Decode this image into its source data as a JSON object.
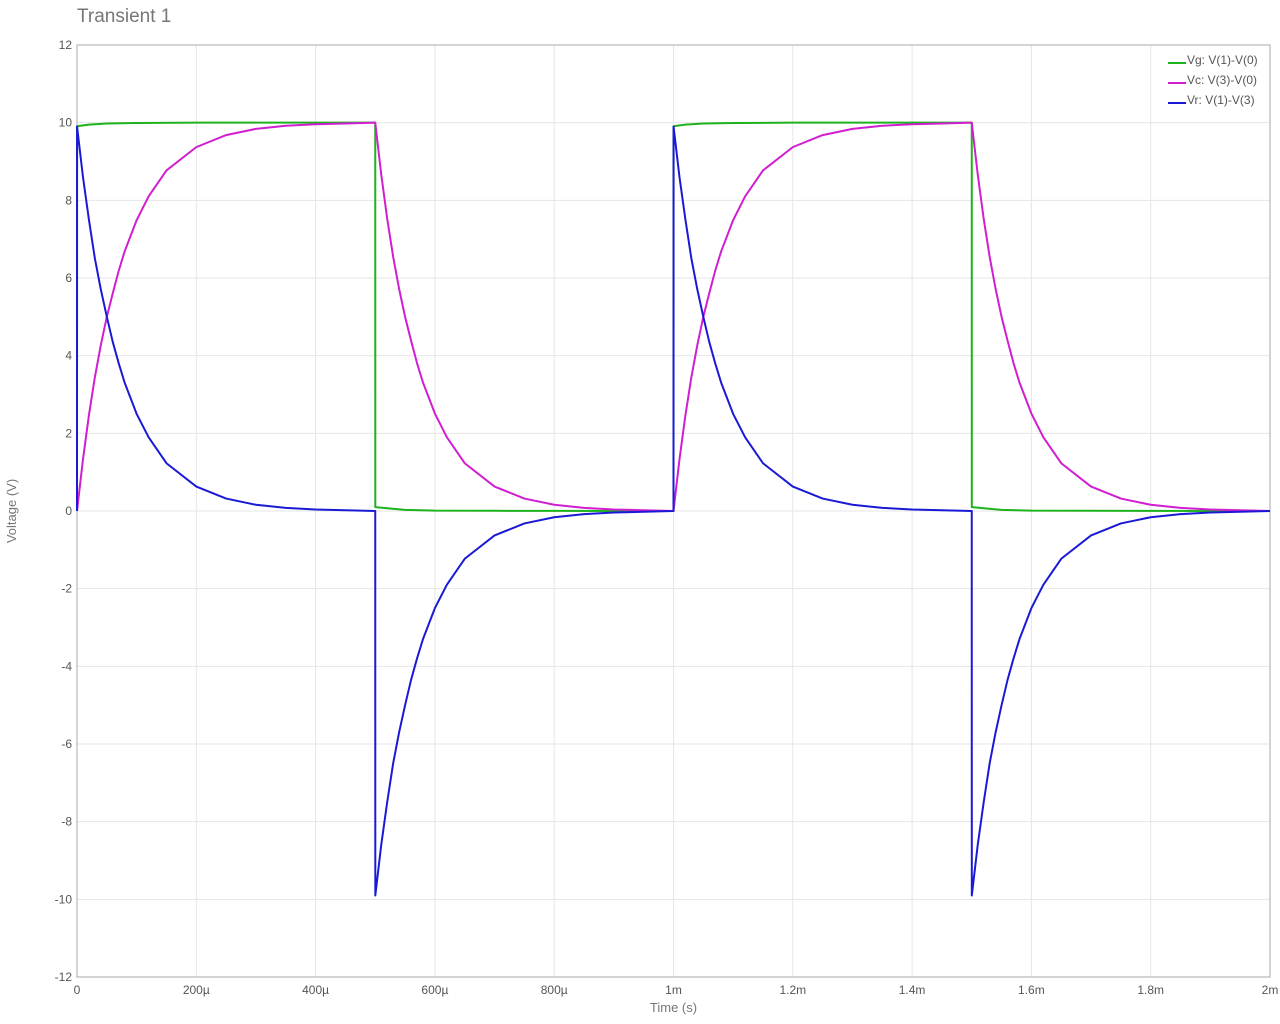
{
  "chart_data": {
    "type": "line",
    "title": "Transient 1",
    "xlabel": "Time (s)",
    "ylabel": "Voltage (V)",
    "xlim": [
      0,
      0.002
    ],
    "ylim": [
      -12,
      12
    ],
    "grid": true,
    "legend_position": "top-right",
    "x_ticks": [
      {
        "value": 0,
        "label": "0"
      },
      {
        "value": 0.0002,
        "label": "200µ"
      },
      {
        "value": 0.0004,
        "label": "400µ"
      },
      {
        "value": 0.0006,
        "label": "600µ"
      },
      {
        "value": 0.0008,
        "label": "800µ"
      },
      {
        "value": 0.001,
        "label": "1m"
      },
      {
        "value": 0.0012,
        "label": "1.2m"
      },
      {
        "value": 0.0014,
        "label": "1.4m"
      },
      {
        "value": 0.0016,
        "label": "1.6m"
      },
      {
        "value": 0.0018,
        "label": "1.8m"
      },
      {
        "value": 0.002,
        "label": "2m"
      }
    ],
    "y_ticks": [
      {
        "value": 12,
        "label": "12"
      },
      {
        "value": 10,
        "label": "10"
      },
      {
        "value": 8,
        "label": "8"
      },
      {
        "value": 6,
        "label": "6"
      },
      {
        "value": 4,
        "label": "4"
      },
      {
        "value": 2,
        "label": "2"
      },
      {
        "value": 0,
        "label": "0"
      },
      {
        "value": -2,
        "label": "-2"
      },
      {
        "value": -4,
        "label": "-4"
      },
      {
        "value": -6,
        "label": "-6"
      },
      {
        "value": -8,
        "label": "-8"
      },
      {
        "value": -10,
        "label": "-10"
      },
      {
        "value": -12,
        "label": "-12"
      }
    ],
    "series": [
      {
        "name": "Vg: V(1)-V(0)",
        "color": "#1db31d",
        "points": [
          [
            0,
            0
          ],
          [
            1e-07,
            9.9
          ],
          [
            1e-06,
            9.91
          ],
          [
            2e-05,
            9.95
          ],
          [
            5e-05,
            9.98
          ],
          [
            0.0001,
            9.99
          ],
          [
            0.0002,
            10
          ],
          [
            0.0003,
            10
          ],
          [
            0.0004,
            10
          ],
          [
            0.0005,
            10
          ],
          [
            0.0005001,
            0.1
          ],
          [
            0.00052,
            0.07
          ],
          [
            0.00055,
            0.03
          ],
          [
            0.0006,
            0.01
          ],
          [
            0.0007,
            0.005
          ],
          [
            0.0008,
            0.002
          ],
          [
            0.0009,
            0.001
          ],
          [
            0.001,
            0
          ],
          [
            0.0010001,
            9.9
          ],
          [
            0.001001,
            9.91
          ],
          [
            0.00102,
            9.95
          ],
          [
            0.00105,
            9.98
          ],
          [
            0.0011,
            9.99
          ],
          [
            0.0012,
            10
          ],
          [
            0.0013,
            10
          ],
          [
            0.0014,
            10
          ],
          [
            0.0015,
            10
          ],
          [
            0.0015001,
            0.1
          ],
          [
            0.00152,
            0.07
          ],
          [
            0.00155,
            0.03
          ],
          [
            0.0016,
            0.01
          ],
          [
            0.0017,
            0.005
          ],
          [
            0.0018,
            0.002
          ],
          [
            0.0019,
            0.001
          ],
          [
            0.002,
            0
          ]
        ]
      },
      {
        "name": "Vc: V(3)-V(0)",
        "color": "#d01ed0",
        "points": [
          [
            0,
            0
          ],
          [
            1e-05,
            1.33
          ],
          [
            2e-05,
            2.47
          ],
          [
            3e-05,
            3.45
          ],
          [
            4e-05,
            4.28
          ],
          [
            5e-05,
            5
          ],
          [
            6e-05,
            5.61
          ],
          [
            7e-05,
            6.19
          ],
          [
            8e-05,
            6.69
          ],
          [
            0.0001,
            7.49
          ],
          [
            0.00012,
            8.1
          ],
          [
            0.00015,
            8.77
          ],
          [
            0.0002,
            9.37
          ],
          [
            0.00025,
            9.68
          ],
          [
            0.0003,
            9.84
          ],
          [
            0.00035,
            9.92
          ],
          [
            0.0004,
            9.96
          ],
          [
            0.00045,
            9.98
          ],
          [
            0.0005,
            10
          ],
          [
            0.00051,
            8.67
          ],
          [
            0.00052,
            7.53
          ],
          [
            0.00053,
            6.55
          ],
          [
            0.00054,
            5.72
          ],
          [
            0.00055,
            5
          ],
          [
            0.00056,
            4.39
          ],
          [
            0.00057,
            3.81
          ],
          [
            0.00058,
            3.31
          ],
          [
            0.0006,
            2.51
          ],
          [
            0.00062,
            1.9
          ],
          [
            0.00065,
            1.23
          ],
          [
            0.0007,
            0.63
          ],
          [
            0.00075,
            0.32
          ],
          [
            0.0008,
            0.16
          ],
          [
            0.00085,
            0.08
          ],
          [
            0.0009,
            0.04
          ],
          [
            0.00095,
            0.02
          ],
          [
            0.001,
            0
          ],
          [
            0.00101,
            1.33
          ],
          [
            0.00102,
            2.47
          ],
          [
            0.00103,
            3.45
          ],
          [
            0.00104,
            4.28
          ],
          [
            0.00105,
            5
          ],
          [
            0.00106,
            5.61
          ],
          [
            0.00107,
            6.19
          ],
          [
            0.00108,
            6.69
          ],
          [
            0.0011,
            7.49
          ],
          [
            0.00112,
            8.1
          ],
          [
            0.00115,
            8.77
          ],
          [
            0.0012,
            9.37
          ],
          [
            0.00125,
            9.68
          ],
          [
            0.0013,
            9.84
          ],
          [
            0.00135,
            9.92
          ],
          [
            0.0014,
            9.96
          ],
          [
            0.00145,
            9.98
          ],
          [
            0.0015,
            10
          ],
          [
            0.00151,
            8.67
          ],
          [
            0.00152,
            7.53
          ],
          [
            0.00153,
            6.55
          ],
          [
            0.00154,
            5.72
          ],
          [
            0.00155,
            5
          ],
          [
            0.00156,
            4.39
          ],
          [
            0.00157,
            3.81
          ],
          [
            0.00158,
            3.31
          ],
          [
            0.0016,
            2.51
          ],
          [
            0.00162,
            1.9
          ],
          [
            0.00165,
            1.23
          ],
          [
            0.0017,
            0.63
          ],
          [
            0.00175,
            0.32
          ],
          [
            0.0018,
            0.16
          ],
          [
            0.00185,
            0.08
          ],
          [
            0.0019,
            0.04
          ],
          [
            0.00195,
            0.02
          ],
          [
            0.002,
            0
          ]
        ]
      },
      {
        "name": "Vr: V(1)-V(3)",
        "color": "#1a1ad6",
        "points": [
          [
            0,
            0
          ],
          [
            1e-07,
            9.9
          ],
          [
            1e-05,
            8.6
          ],
          [
            2e-05,
            7.5
          ],
          [
            3e-05,
            6.5
          ],
          [
            4e-05,
            5.7
          ],
          [
            5e-05,
            5
          ],
          [
            6e-05,
            4.35
          ],
          [
            7e-05,
            3.8
          ],
          [
            8e-05,
            3.3
          ],
          [
            0.0001,
            2.5
          ],
          [
            0.00012,
            1.9
          ],
          [
            0.00015,
            1.23
          ],
          [
            0.0002,
            0.63
          ],
          [
            0.00025,
            0.32
          ],
          [
            0.0003,
            0.16
          ],
          [
            0.00035,
            0.08
          ],
          [
            0.0004,
            0.04
          ],
          [
            0.00045,
            0.02
          ],
          [
            0.0005,
            0
          ],
          [
            0.0005001,
            -9.9
          ],
          [
            0.00051,
            -8.6
          ],
          [
            0.00052,
            -7.5
          ],
          [
            0.00053,
            -6.5
          ],
          [
            0.00054,
            -5.7
          ],
          [
            0.00055,
            -5
          ],
          [
            0.00056,
            -4.35
          ],
          [
            0.00057,
            -3.8
          ],
          [
            0.00058,
            -3.3
          ],
          [
            0.0006,
            -2.5
          ],
          [
            0.00062,
            -1.9
          ],
          [
            0.00065,
            -1.23
          ],
          [
            0.0007,
            -0.63
          ],
          [
            0.00075,
            -0.32
          ],
          [
            0.0008,
            -0.16
          ],
          [
            0.00085,
            -0.08
          ],
          [
            0.0009,
            -0.04
          ],
          [
            0.00095,
            -0.02
          ],
          [
            0.001,
            0
          ],
          [
            0.0010001,
            9.9
          ],
          [
            0.00101,
            8.6
          ],
          [
            0.00102,
            7.5
          ],
          [
            0.00103,
            6.5
          ],
          [
            0.00104,
            5.7
          ],
          [
            0.00105,
            5
          ],
          [
            0.00106,
            4.35
          ],
          [
            0.00107,
            3.8
          ],
          [
            0.00108,
            3.3
          ],
          [
            0.0011,
            2.5
          ],
          [
            0.00112,
            1.9
          ],
          [
            0.00115,
            1.23
          ],
          [
            0.0012,
            0.63
          ],
          [
            0.00125,
            0.32
          ],
          [
            0.0013,
            0.16
          ],
          [
            0.00135,
            0.08
          ],
          [
            0.0014,
            0.04
          ],
          [
            0.00145,
            0.02
          ],
          [
            0.0015,
            0
          ],
          [
            0.0015001,
            -9.9
          ],
          [
            0.00151,
            -8.6
          ],
          [
            0.00152,
            -7.5
          ],
          [
            0.00153,
            -6.5
          ],
          [
            0.00154,
            -5.7
          ],
          [
            0.00155,
            -5
          ],
          [
            0.00156,
            -4.35
          ],
          [
            0.00157,
            -3.8
          ],
          [
            0.00158,
            -3.3
          ],
          [
            0.0016,
            -2.5
          ],
          [
            0.00162,
            -1.9
          ],
          [
            0.00165,
            -1.23
          ],
          [
            0.0017,
            -0.63
          ],
          [
            0.00175,
            -0.32
          ],
          [
            0.0018,
            -0.16
          ],
          [
            0.00185,
            -0.08
          ],
          [
            0.0019,
            -0.04
          ],
          [
            0.00195,
            -0.02
          ],
          [
            0.002,
            0
          ]
        ]
      }
    ],
    "style": {
      "grid_color": "#e6e6e6",
      "frame_color": "#aaaaaa",
      "text_color": "#555555"
    }
  }
}
